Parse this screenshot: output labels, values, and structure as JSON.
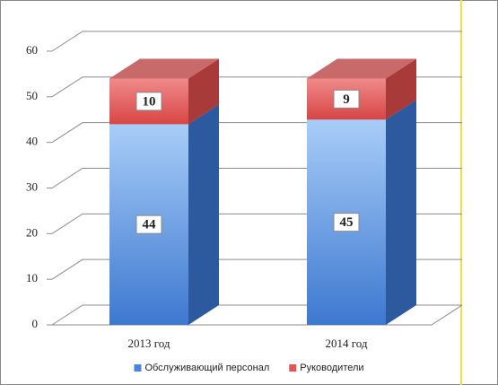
{
  "chart_data": {
    "type": "bar3d_stacked",
    "categories": [
      "2013 год",
      "2014 год"
    ],
    "series": [
      {
        "name": "Обслуживающий персонал",
        "color": "#4a86d8",
        "values": [
          44,
          45
        ]
      },
      {
        "name": "Руководители",
        "color": "#e05555",
        "values": [
          10,
          9
        ]
      }
    ],
    "ylim": [
      0,
      60
    ],
    "yticks": [
      0,
      10,
      20,
      30,
      40,
      50,
      60
    ],
    "grid": true,
    "legend": "bottom"
  }
}
